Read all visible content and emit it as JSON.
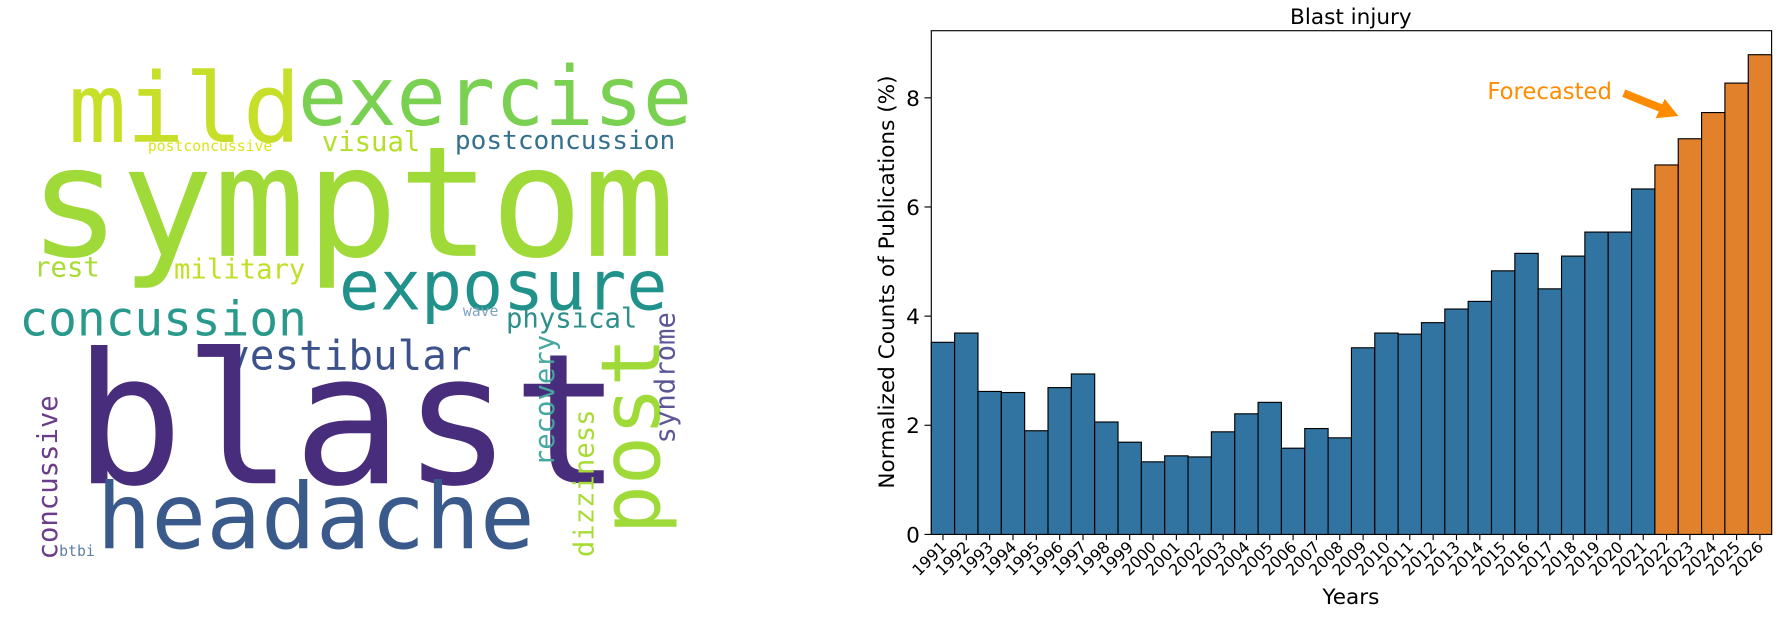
{
  "chart_data": [
    {
      "type": "wordcloud",
      "words": [
        {
          "text": "mild",
          "color": "#c8df2a"
        },
        {
          "text": "exercise",
          "color": "#7ad151"
        },
        {
          "text": "symptom",
          "color": "#a0da39"
        },
        {
          "text": "postconcussive",
          "color": "#dde318"
        },
        {
          "text": "visual",
          "color": "#b5de2b"
        },
        {
          "text": "postconcussion",
          "color": "#35718e"
        },
        {
          "text": "rest",
          "color": "#a8db34"
        },
        {
          "text": "military",
          "color": "#c0df25"
        },
        {
          "text": "exposure",
          "color": "#21918c"
        },
        {
          "text": "concussion",
          "color": "#29998b"
        },
        {
          "text": "wave",
          "color": "#7da3c0"
        },
        {
          "text": "physical",
          "color": "#2f8f8a"
        },
        {
          "text": "vestibular",
          "color": "#3b528b"
        },
        {
          "text": "blast",
          "color": "#472d7b"
        },
        {
          "text": "headache",
          "color": "#3b5a8c"
        },
        {
          "text": "post",
          "color": "#a0da39"
        },
        {
          "text": "recovery",
          "color": "#44a7a0"
        },
        {
          "text": "dizziness",
          "color": "#a8db34"
        },
        {
          "text": "syndrome",
          "color": "#5c5898"
        },
        {
          "text": "concussive",
          "color": "#6a3d8a"
        },
        {
          "text": "btbi",
          "color": "#5a7fa0"
        }
      ]
    },
    {
      "type": "bar",
      "title": "Blast injury",
      "x_label": "Years",
      "y_label": "Normalized Counts of Publications (%)",
      "categories": [
        "1991",
        "1992",
        "1993",
        "1994",
        "1995",
        "1996",
        "1997",
        "1998",
        "1999",
        "2000",
        "2001",
        "2002",
        "2003",
        "2004",
        "2005",
        "2006",
        "2007",
        "2008",
        "2009",
        "2010",
        "2011",
        "2012",
        "2013",
        "2014",
        "2015",
        "2016",
        "2017",
        "2018",
        "2019",
        "2020",
        "2021",
        "2022",
        "2023",
        "2024",
        "2025",
        "2026"
      ],
      "series": [
        {
          "color": "#3274a1",
          "values": [
            3.52,
            3.69,
            2.62,
            2.6,
            1.9,
            2.69,
            2.94,
            2.06,
            1.69,
            1.33,
            1.44,
            1.42,
            1.88,
            2.21,
            2.42,
            1.58,
            1.94,
            1.77,
            3.42,
            3.69,
            3.67,
            3.88,
            4.13,
            4.27,
            4.83,
            5.15,
            4.5,
            5.1,
            5.54,
            5.54,
            6.33,
            null,
            null,
            null,
            null,
            null
          ]
        },
        {
          "color": "#e1812c",
          "values": [
            null,
            null,
            null,
            null,
            null,
            null,
            null,
            null,
            null,
            null,
            null,
            null,
            null,
            null,
            null,
            null,
            null,
            null,
            null,
            null,
            null,
            null,
            null,
            null,
            null,
            null,
            null,
            null,
            null,
            null,
            null,
            6.77,
            7.25,
            7.73,
            8.27,
            8.79
          ]
        }
      ],
      "ylim": [
        0,
        9.23
      ],
      "yticks": [
        0,
        2,
        4,
        6,
        8
      ],
      "annotation": {
        "text": "Forecasted",
        "color": "#ff8c00"
      }
    }
  ]
}
